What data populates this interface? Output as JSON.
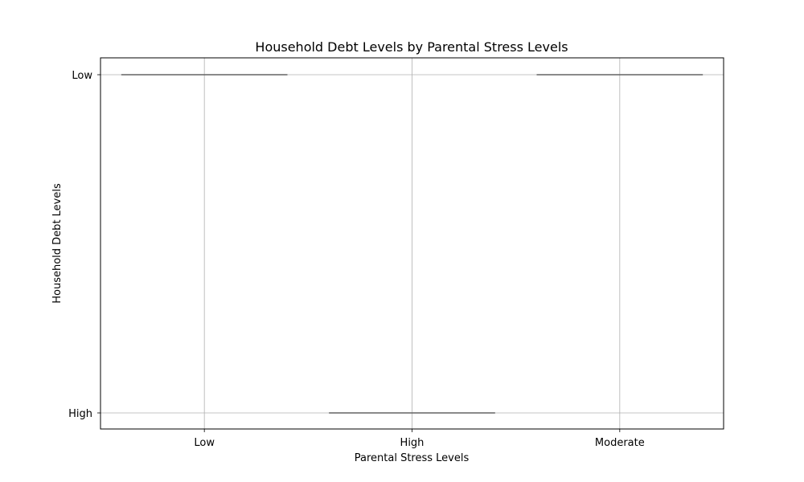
{
  "chart_data": {
    "type": "box",
    "title": "Household Debt Levels by Parental Stress Levels",
    "xlabel": "Parental Stress Levels",
    "ylabel": "Household Debt Levels",
    "categories": [
      "Low",
      "High",
      "Moderate"
    ],
    "y_categories": [
      "High",
      "Low"
    ],
    "boxes": [
      {
        "category": "Low",
        "y": "Low"
      },
      {
        "category": "High",
        "y": "High"
      },
      {
        "category": "Moderate",
        "y": "Low"
      }
    ],
    "grid": true,
    "colors": {
      "box_line": "#646464",
      "grid": "#b0b0b0",
      "axes": "#000000"
    }
  }
}
